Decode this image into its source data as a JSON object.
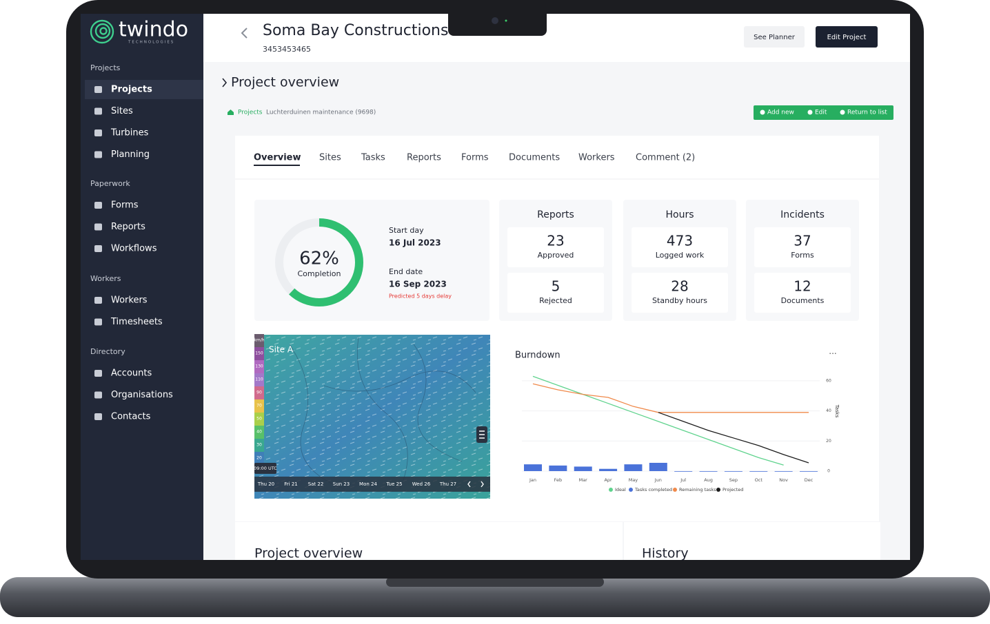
{
  "brand": {
    "name": "twindo",
    "tagline": "TECHNOLOGIES"
  },
  "sidebar": {
    "sections": [
      {
        "title": "Projects",
        "items": [
          "Projects",
          "Sites",
          "Turbines",
          "Planning"
        ]
      },
      {
        "title": "Paperwork",
        "items": [
          "Forms",
          "Reports",
          "Workflows"
        ]
      },
      {
        "title": "Workers",
        "items": [
          "Workers",
          "Timesheets"
        ]
      },
      {
        "title": "Directory",
        "items": [
          "Accounts",
          "Organisations",
          "Contacts"
        ]
      }
    ]
  },
  "header": {
    "title": "Soma Bay Constructions",
    "id": "3453453465",
    "buttons": [
      "See Planner",
      "Edit Project"
    ]
  },
  "page_title": "Project overview",
  "breadcrumb": [
    "Projects",
    "Luchterduinen maintenance (9698)"
  ],
  "actions": [
    "Add new",
    "Edit",
    "Return to list"
  ],
  "tabs": [
    "Overview",
    "Sites",
    "Tasks",
    "Reports",
    "Forms",
    "Documents",
    "Workers",
    "Comment (2)"
  ],
  "completion": {
    "value": 62,
    "value_label": "62%",
    "caption": "Completion"
  },
  "schedule": {
    "start_label": "Start day",
    "start": "16 Jul 2023",
    "end_label": "End date",
    "end": "16 Sep 2023",
    "note": "Predicted 5 days delay"
  },
  "stats": [
    {
      "title": "Reports",
      "items": [
        {
          "value": 23,
          "label": "Approved"
        },
        {
          "value": 5,
          "label": "Rejected"
        }
      ]
    },
    {
      "title": "Hours",
      "items": [
        {
          "value": 473,
          "label": "Logged work"
        },
        {
          "value": 28,
          "label": "Standby hours"
        }
      ]
    },
    {
      "title": "Incidents",
      "items": [
        {
          "value": 37,
          "label": "Forms"
        },
        {
          "value": 12,
          "label": "Documents"
        }
      ]
    }
  ],
  "map": {
    "site": "Site A",
    "scale": [
      "km/h",
      "150",
      "130",
      "110",
      "90",
      "70",
      "50",
      "40",
      "30",
      "20"
    ],
    "time": "09:00 UTC",
    "days": [
      "Thu 20",
      "Fri 21",
      "Sat 22",
      "Sun 23",
      "Mon 24",
      "Tue 25",
      "Wed 26",
      "Thu 27"
    ]
  },
  "chart_data": {
    "type": "combo",
    "title": "Burndown",
    "menu": "···",
    "ylabel": "Tasks",
    "y_axis_side": "right",
    "categories": [
      "Jan",
      "Feb",
      "Mar",
      "Apr",
      "May",
      "Jun",
      "Jul",
      "Aug",
      "Sep",
      "Oct",
      "Nov",
      "Dec"
    ],
    "ylim": [
      0,
      65
    ],
    "yticks": [
      0,
      20,
      40,
      60
    ],
    "grid": true,
    "series": [
      {
        "name": "Ideal",
        "type": "line",
        "color": "#5fd38d",
        "values": [
          63,
          57,
          51,
          45,
          39,
          33,
          27,
          21,
          15,
          9,
          4,
          null
        ]
      },
      {
        "name": "Tasks completed",
        "type": "bar",
        "color": "#4a72d9",
        "values": [
          4.5,
          3.7,
          3,
          1.5,
          4.5,
          5.5,
          0,
          0,
          0,
          0,
          0,
          0
        ]
      },
      {
        "name": "Remaining tasks",
        "type": "line",
        "color": "#f0894a",
        "values": [
          58,
          54,
          51,
          49,
          43,
          39,
          39,
          39,
          39,
          39,
          39,
          39
        ]
      },
      {
        "name": "Projected",
        "type": "line",
        "color": "#1b1b1b",
        "values": [
          null,
          null,
          null,
          null,
          null,
          39,
          33,
          27,
          22,
          17,
          11,
          5.5
        ]
      }
    ]
  },
  "bottom_cards": [
    "Project overview",
    "History"
  ]
}
